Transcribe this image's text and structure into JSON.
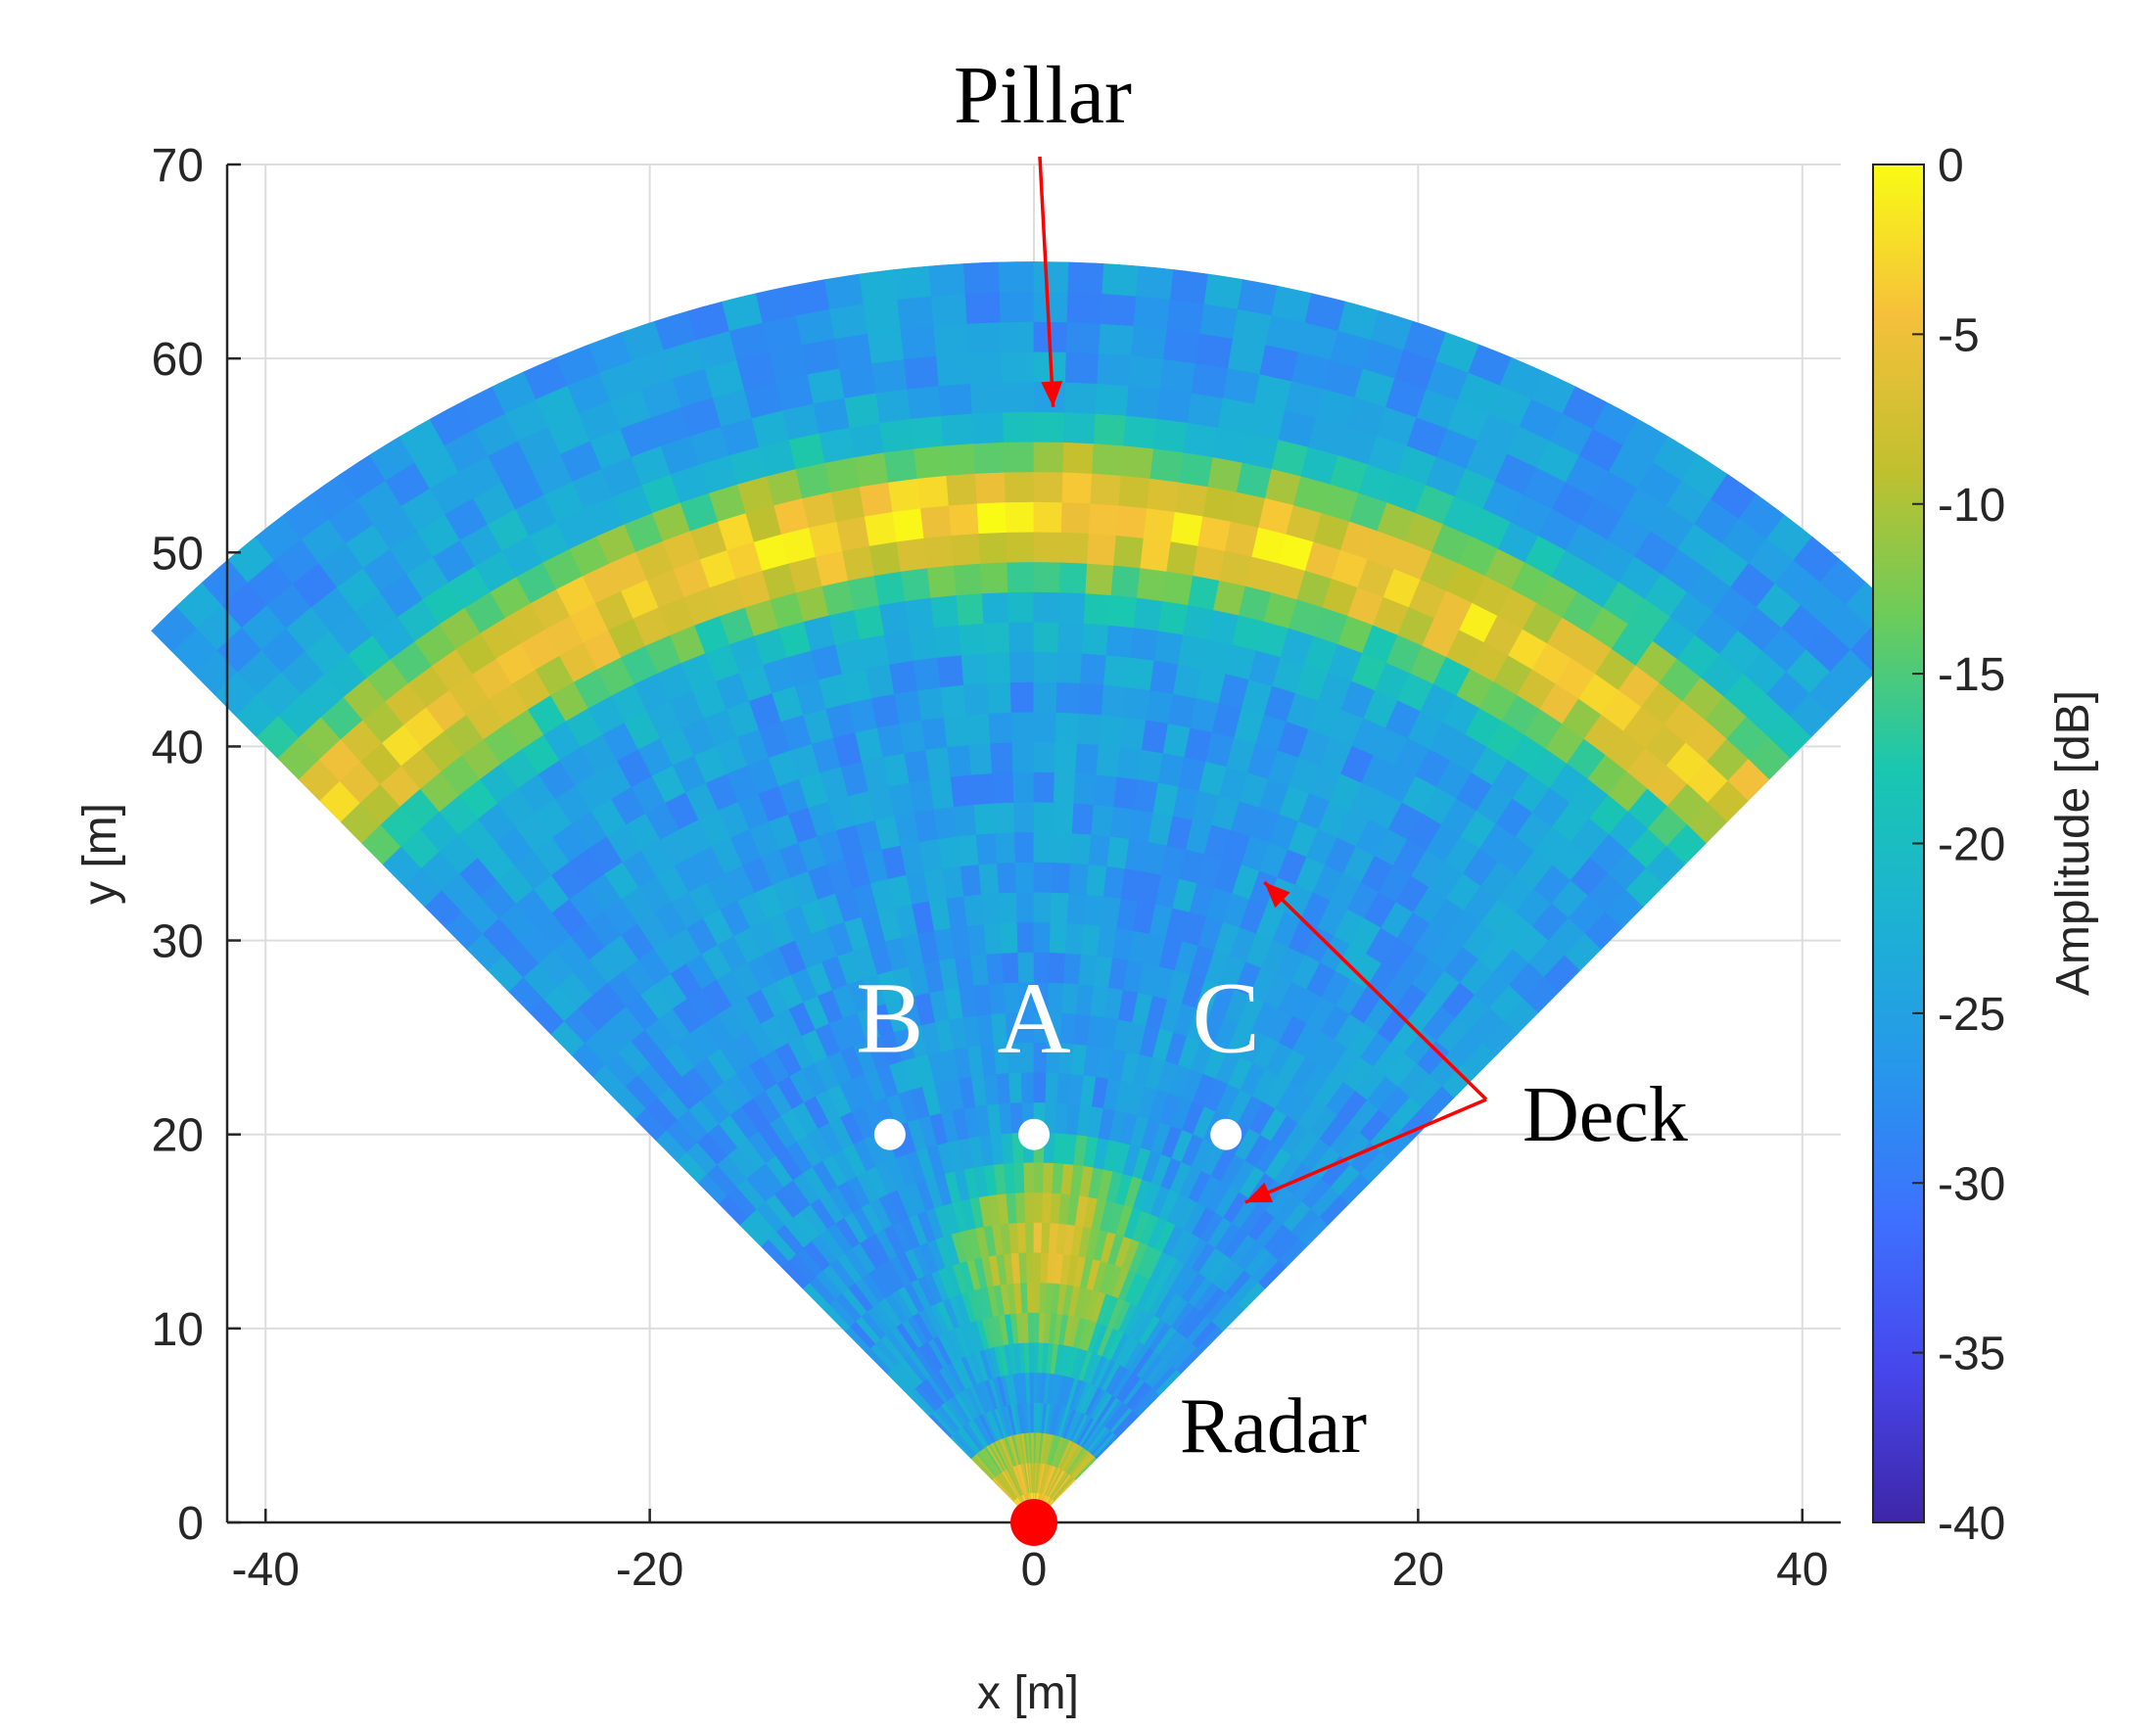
{
  "chart_data": {
    "type": "heatmap",
    "title": "",
    "xlabel": "x [m]",
    "ylabel": "y [m]",
    "xlim": [
      -42,
      42
    ],
    "ylim": [
      0,
      70
    ],
    "xticks": [
      -40,
      -20,
      0,
      20,
      40
    ],
    "xtick_labels": [
      "-40",
      "-20",
      "0",
      "20",
      "40"
    ],
    "yticks": [
      0,
      10,
      20,
      30,
      40,
      50,
      60,
      70
    ],
    "ytick_labels": [
      "0",
      "10",
      "20",
      "30",
      "40",
      "50",
      "60",
      "70"
    ],
    "grid": true,
    "sector": {
      "radius_max": 65,
      "half_angle_deg": 45
    },
    "colorbar": {
      "label": "Amplitude [dB]",
      "range": [
        -40,
        0
      ],
      "ticks": [
        0,
        -5,
        -10,
        -15,
        -20,
        -25,
        -30,
        -35,
        -40
      ],
      "tick_labels": [
        "0",
        "-5",
        "-10",
        "-15",
        "-20",
        "-25",
        "-30",
        "-35",
        "-40"
      ],
      "colormap": "parula",
      "stops": [
        "#3e26a8",
        "#4746eb",
        "#3e70ff",
        "#2797eb",
        "#1cb2d3",
        "#1ac7b0",
        "#6bcc5a",
        "#c2c02e",
        "#f5c03b",
        "#f9fb15"
      ]
    },
    "features": [
      {
        "name": "Pillar band",
        "y_range": [
          47,
          57
        ],
        "peak_dB": -2
      },
      {
        "name": "Deck",
        "x_half_width": 10,
        "y_range": [
          0,
          47
        ],
        "level_dB": -25
      },
      {
        "name": "Near-field strong return",
        "x": 1,
        "y": 14,
        "level_dB": -8
      }
    ],
    "points": [
      {
        "label": "B",
        "x": -7.5,
        "y": 20
      },
      {
        "label": "A",
        "x": 0,
        "y": 20
      },
      {
        "label": "C",
        "x": 10,
        "y": 20
      }
    ],
    "radar": {
      "label": "Radar",
      "x": 0,
      "y": 0,
      "color": "#ff0000"
    },
    "annotations": [
      {
        "text": "Pillar",
        "color": "#ff0000",
        "arrow_to": [
          [
            1,
            57.5
          ]
        ]
      },
      {
        "text": "Deck",
        "color": "#ff0000",
        "arrow_to": [
          [
            12,
            33
          ],
          [
            11,
            16.5
          ]
        ]
      }
    ],
    "colors": {
      "background": "#3e26a8",
      "arrow": "#ff0000",
      "point": "#ffffff",
      "grid": "#dddddd"
    }
  }
}
